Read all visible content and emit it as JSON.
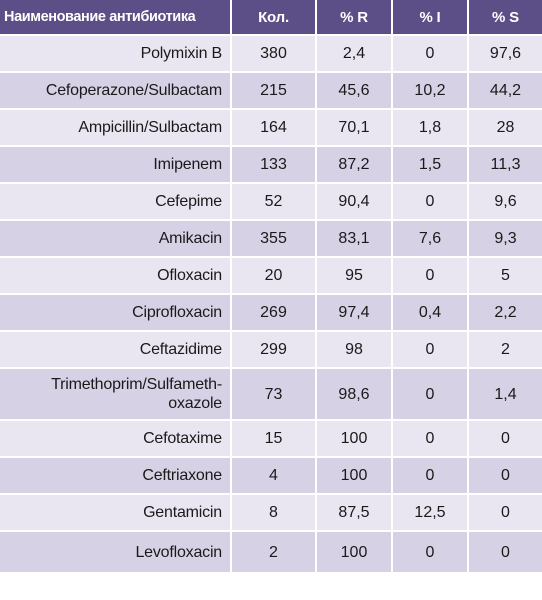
{
  "header": {
    "name": "Наименование антибиотика",
    "count": "Кол.",
    "r": "% R",
    "i": "% I",
    "s": "% S"
  },
  "rows": [
    {
      "name": "Polymixin B",
      "count": "380",
      "r": "2,4",
      "i": "0",
      "s": "97,6"
    },
    {
      "name": "Cefoperazone/Sulbactam",
      "count": "215",
      "r": "45,6",
      "i": "10,2",
      "s": "44,2"
    },
    {
      "name": "Ampicillin/Sulbactam",
      "count": "164",
      "r": "70,1",
      "i": "1,8",
      "s": "28"
    },
    {
      "name": "Imipenem",
      "count": "133",
      "r": "87,2",
      "i": "1,5",
      "s": "11,3"
    },
    {
      "name": "Cefepime",
      "count": "52",
      "r": "90,4",
      "i": "0",
      "s": "9,6"
    },
    {
      "name": "Amikacin",
      "count": "355",
      "r": "83,1",
      "i": "7,6",
      "s": "9,3"
    },
    {
      "name": "Ofloxacin",
      "count": "20",
      "r": "95",
      "i": "0",
      "s": "5"
    },
    {
      "name": "Ciprofloxacin",
      "count": "269",
      "r": "97,4",
      "i": "0,4",
      "s": "2,2"
    },
    {
      "name": "Ceftazidime",
      "count": "299",
      "r": "98",
      "i": "0",
      "s": "2"
    },
    {
      "name_line1": "Trimethoprim/Sulfameth-",
      "name_line2": "oxazole",
      "count": "73",
      "r": "98,6",
      "i": "0",
      "s": "1,4"
    },
    {
      "name": "Cefotaxime",
      "count": "15",
      "r": "100",
      "i": "0",
      "s": "0"
    },
    {
      "name": "Ceftriaxone",
      "count": "4",
      "r": "100",
      "i": "0",
      "s": "0"
    },
    {
      "name": "Gentamicin",
      "count": "8",
      "r": "87,5",
      "i": "12,5",
      "s": "0"
    },
    {
      "name": "Levofloxacin",
      "count": "2",
      "r": "100",
      "i": "0",
      "s": "0"
    }
  ]
}
